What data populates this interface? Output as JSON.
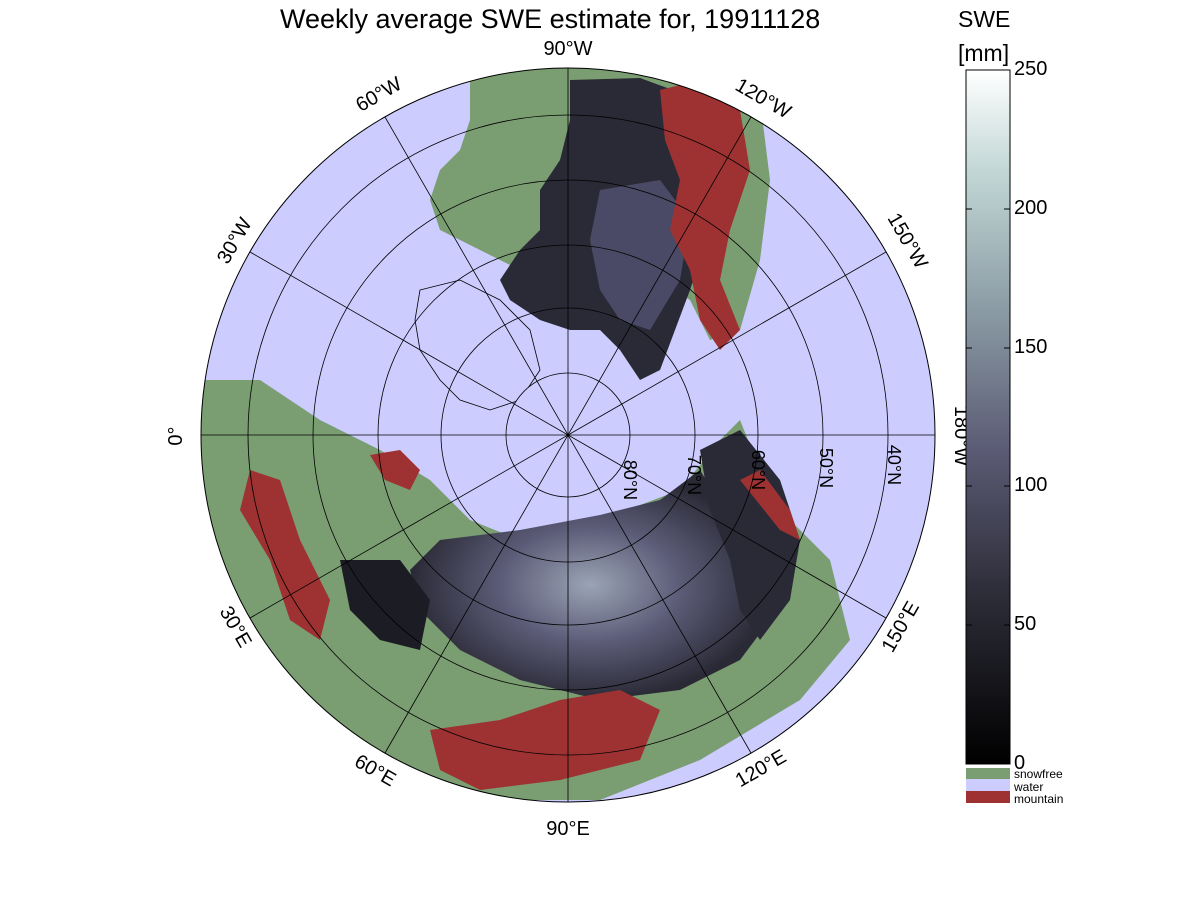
{
  "title": "Weekly average SWE estimate for, 19911128",
  "colorbar": {
    "label_line1": "SWE",
    "label_line2": "[mm]",
    "min": 0,
    "max": 250,
    "ticks": [
      0,
      50,
      100,
      150,
      200,
      250
    ],
    "tick_labels": [
      "0",
      "50",
      "100",
      "150",
      "200",
      "250"
    ]
  },
  "legend": [
    {
      "label": "snowfree",
      "color": "#7a9e72"
    },
    {
      "label": "water",
      "color": "#ccccff"
    },
    {
      "label": "mountain",
      "color": "#9e3232"
    }
  ],
  "map": {
    "projection": "north polar stereographic",
    "meridian_labels": [
      "0°",
      "30°W",
      "60°W",
      "90°W",
      "120°W",
      "150°W",
      "180°W",
      "150°E",
      "120°E",
      "90°E",
      "60°E",
      "30°E"
    ],
    "parallel_labels": [
      "80°N",
      "70°N",
      "60°N",
      "50°N",
      "40°N"
    ],
    "colors": {
      "water": "#ccccff",
      "snowfree": "#7a9e72",
      "mountain": "#9e3232",
      "snow_low": "#141419",
      "snow_mid": "#4a4a66",
      "snow_high": "#8c96a8"
    }
  }
}
